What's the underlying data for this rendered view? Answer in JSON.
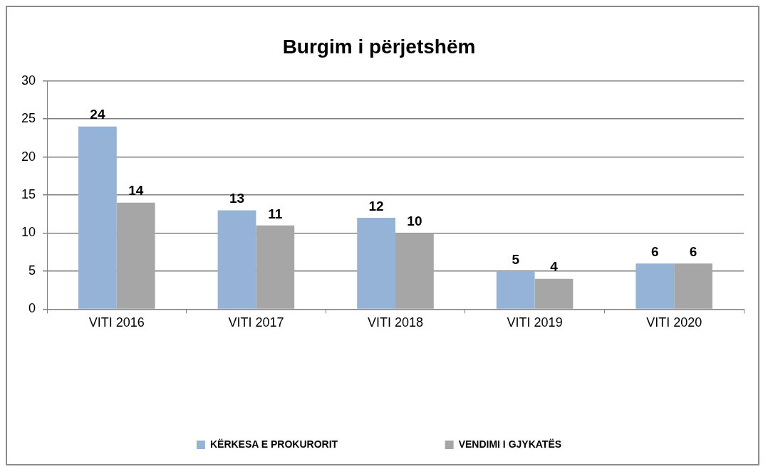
{
  "chart_data": {
    "type": "bar",
    "title": "Burgim i përjetshëm",
    "categories": [
      "VITI 2016",
      "VITI 2017",
      "VITI 2018",
      "VITI 2019",
      "VITI 2020"
    ],
    "series": [
      {
        "name": "KËRKESA E PROKURORIT",
        "color": "#95b3d7",
        "values": [
          24,
          13,
          12,
          5,
          6
        ]
      },
      {
        "name": "VENDIMI I GJYKATËS",
        "color": "#a6a6a6",
        "values": [
          14,
          11,
          10,
          4,
          6
        ]
      }
    ],
    "ylim": [
      0,
      30
    ],
    "yticks": [
      0,
      5,
      10,
      15,
      20,
      25,
      30
    ],
    "grid": "y",
    "legend": "bottom",
    "data_labels": true
  }
}
